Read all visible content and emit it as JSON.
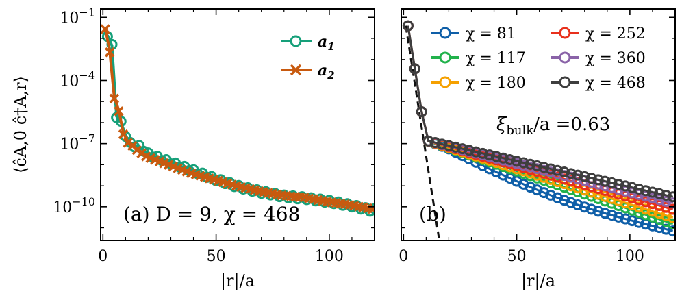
{
  "chart_data": [
    {
      "type": "line",
      "panel_label": "(a) D = 9, χ = 468",
      "xlabel": "|r|/a",
      "ylabel": "⟨ĉA,0 ĉ†A,r⟩",
      "yscale": "log",
      "xlim": [
        -1,
        120
      ],
      "ylim_log10": [
        -11.6,
        -0.6
      ],
      "x_ticks": [
        0,
        50,
        100
      ],
      "y_ticks": [
        {
          "exp": -1,
          "label": "10",
          "sup": "−1"
        },
        {
          "exp": -4,
          "label": "10",
          "sup": "−4"
        },
        {
          "exp": -7,
          "label": "10",
          "sup": "−7"
        },
        {
          "exp": -10,
          "label": "10",
          "sup": "−10"
        }
      ],
      "legend_position": "top-right",
      "series": [
        {
          "name": "a1",
          "label_main": "a",
          "label_sub": "1",
          "marker": "circle",
          "color": "#16a07a",
          "x": [
            2,
            4,
            6,
            8,
            10,
            12,
            14,
            16,
            18,
            20,
            30,
            40,
            50,
            60,
            70,
            80,
            90,
            100,
            110,
            118
          ],
          "log10_y": [
            -1.85,
            -2.35,
            -5.7,
            -6.0,
            -6.6,
            -7.0,
            -7.1,
            -7.15,
            -7.3,
            -7.5,
            -7.9,
            -8.3,
            -8.7,
            -9.05,
            -9.3,
            -9.5,
            -9.6,
            -9.75,
            -9.95,
            -10.15
          ]
        },
        {
          "name": "a2",
          "label_main": "a",
          "label_sub": "2",
          "marker": "x",
          "color": "#c85a0f",
          "x": [
            1,
            3,
            5,
            7,
            9,
            11,
            13,
            15,
            17,
            19,
            29,
            39,
            49,
            59,
            69,
            79,
            89,
            99,
            109,
            119
          ],
          "log10_y": [
            -1.5,
            -2.6,
            -4.8,
            -5.4,
            -6.5,
            -6.9,
            -7.05,
            -7.25,
            -7.4,
            -7.55,
            -7.95,
            -8.35,
            -8.65,
            -8.95,
            -9.2,
            -9.4,
            -9.5,
            -9.7,
            -9.85,
            -10.05
          ]
        }
      ]
    },
    {
      "type": "line",
      "panel_label": "(b)",
      "xlabel": "|r|/a",
      "yscale": "log",
      "xlim": [
        -1,
        120
      ],
      "ylim_log10": [
        -11.6,
        -0.6
      ],
      "x_ticks": [
        0,
        50,
        100
      ],
      "annotation": "ξbulk/a = 0.63",
      "annotation_parts": {
        "sym": "ξ",
        "sub": "bulk",
        "rest": "/a =0.63"
      },
      "fit_line": {
        "style": "dashed",
        "color": "#111111",
        "x0": 1,
        "log10_y0": -1.4,
        "xi": 0.63
      },
      "legend_position": "top",
      "series": [
        {
          "name": "χ = 81",
          "chi": "81",
          "color": "#0f5fa8",
          "x_start": 2,
          "log10_start": -1.4,
          "log10_end": -11.25,
          "kink": 8.3
        },
        {
          "name": "χ = 117",
          "chi": "117",
          "color": "#22b24c",
          "x_start": 2,
          "log10_start": -1.4,
          "log10_end": -10.85,
          "kink": 7.7
        },
        {
          "name": "χ = 180",
          "chi": "180",
          "color": "#f5a000",
          "x_start": 2,
          "log10_start": -1.4,
          "log10_end": -10.55,
          "kink": 7.6
        },
        {
          "name": "χ = 252",
          "chi": "252",
          "color": "#e8301c",
          "x_start": 2,
          "log10_start": -1.4,
          "log10_end": -10.15,
          "kink": 7.5
        },
        {
          "name": "χ = 360",
          "chi": "360",
          "color": "#8a63a8",
          "x_start": 2,
          "log10_start": -1.4,
          "log10_end": -9.85,
          "kink": 7.45
        },
        {
          "name": "χ = 468",
          "chi": "468",
          "color": "#3e3e3e",
          "x_start": 2,
          "log10_start": -1.4,
          "log10_end": -9.55,
          "kink": 7.4
        }
      ]
    }
  ]
}
